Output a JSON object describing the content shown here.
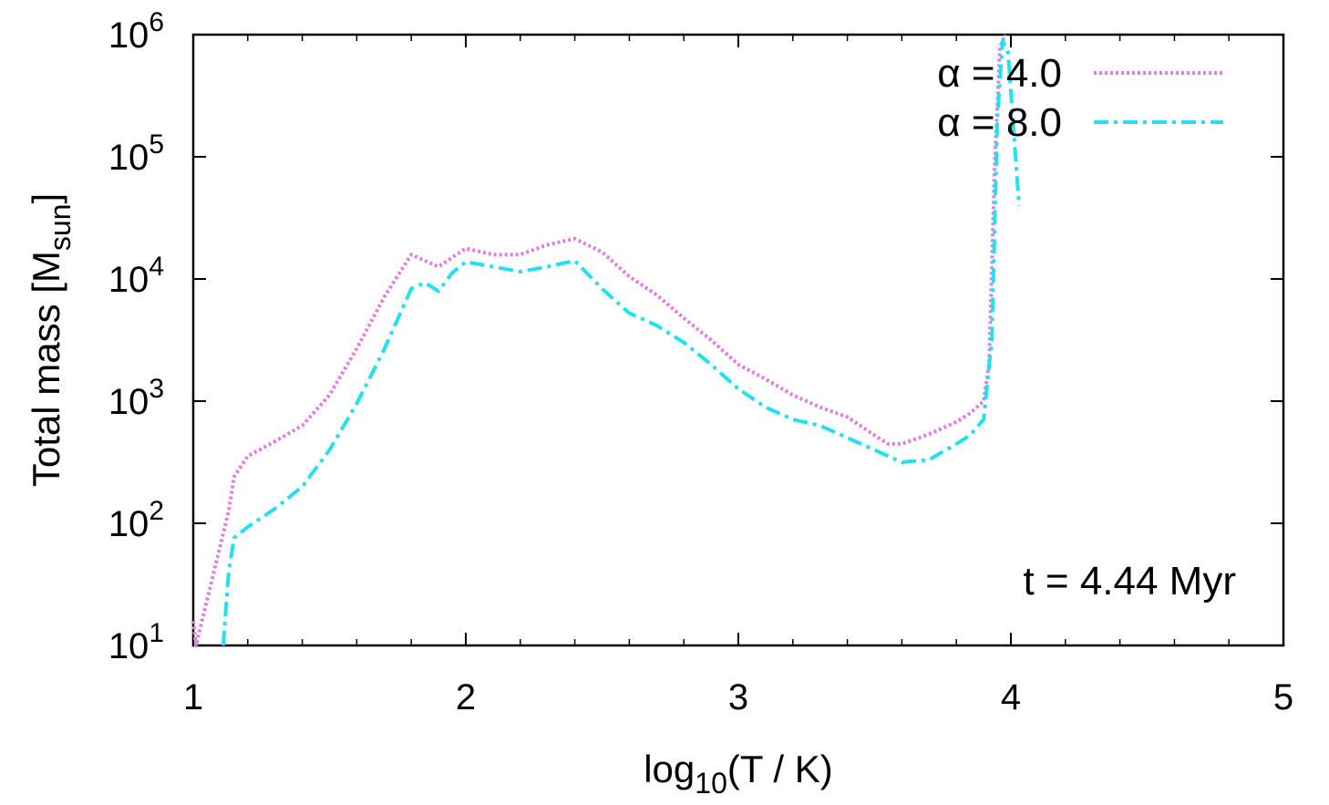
{
  "chart_data": {
    "type": "line",
    "xlabel": {
      "prefix": "log",
      "sub": "10",
      "suffix": "(T / K)"
    },
    "ylabel": {
      "prefix": "Total mass [M",
      "sub": "sun",
      "suffix": "]"
    },
    "xlim": [
      1,
      5
    ],
    "ylim": [
      1,
      6
    ],
    "y_scale": "log",
    "x_ticks": [
      {
        "value": 1,
        "label": "1"
      },
      {
        "value": 2,
        "label": "2"
      },
      {
        "value": 3,
        "label": "3"
      },
      {
        "value": 4,
        "label": "4"
      },
      {
        "value": 5,
        "label": "5"
      }
    ],
    "y_ticks": [
      {
        "value": 1,
        "base": "10",
        "exp": "1"
      },
      {
        "value": 2,
        "base": "10",
        "exp": "2"
      },
      {
        "value": 3,
        "base": "10",
        "exp": "3"
      },
      {
        "value": 4,
        "base": "10",
        "exp": "4"
      },
      {
        "value": 5,
        "base": "10",
        "exp": "5"
      },
      {
        "value": 6,
        "base": "10",
        "exp": "6"
      }
    ],
    "grid": false,
    "legend_position": "top-right",
    "annotation": "t = 4.44 Myr",
    "series": [
      {
        "name": "α = 4.0",
        "color": "#e07ee0",
        "style": "dotted",
        "x": [
          1.0,
          1.01,
          1.13,
          1.15,
          1.2,
          1.3,
          1.4,
          1.5,
          1.6,
          1.7,
          1.8,
          1.9,
          2.0,
          2.1,
          2.2,
          2.3,
          2.4,
          2.5,
          2.6,
          2.7,
          2.8,
          2.9,
          3.0,
          3.1,
          3.2,
          3.3,
          3.4,
          3.5,
          3.55,
          3.6,
          3.7,
          3.8,
          3.85,
          3.9,
          3.92,
          3.94,
          3.96,
          3.98
        ],
        "y": [
          1.2,
          1.0,
          2.1,
          2.38,
          2.55,
          2.67,
          2.8,
          3.05,
          3.43,
          3.85,
          4.2,
          4.1,
          4.25,
          4.2,
          4.2,
          4.28,
          4.33,
          4.22,
          4.02,
          3.87,
          3.68,
          3.5,
          3.3,
          3.18,
          3.05,
          2.95,
          2.87,
          2.72,
          2.65,
          2.65,
          2.73,
          2.83,
          2.9,
          3.0,
          3.3,
          4.9,
          5.9,
          6.0
        ]
      },
      {
        "name": "α = 8.0",
        "color": "#22e0ee",
        "style": "dash-dot",
        "x": [
          1.11,
          1.13,
          1.15,
          1.2,
          1.3,
          1.4,
          1.5,
          1.6,
          1.7,
          1.8,
          1.85,
          1.9,
          1.95,
          2.0,
          2.1,
          2.2,
          2.3,
          2.4,
          2.5,
          2.6,
          2.7,
          2.8,
          2.9,
          3.0,
          3.1,
          3.2,
          3.3,
          3.4,
          3.5,
          3.6,
          3.7,
          3.8,
          3.85,
          3.9,
          3.93,
          3.95,
          3.97,
          3.99,
          4.03
        ],
        "y": [
          1.0,
          1.6,
          1.88,
          1.97,
          2.12,
          2.3,
          2.6,
          2.98,
          3.42,
          3.92,
          3.97,
          3.9,
          4.05,
          4.14,
          4.1,
          4.06,
          4.1,
          4.15,
          3.92,
          3.72,
          3.62,
          3.48,
          3.3,
          3.1,
          2.95,
          2.85,
          2.8,
          2.7,
          2.6,
          2.5,
          2.52,
          2.65,
          2.72,
          2.85,
          3.5,
          5.3,
          5.95,
          5.85,
          4.6
        ]
      }
    ]
  }
}
